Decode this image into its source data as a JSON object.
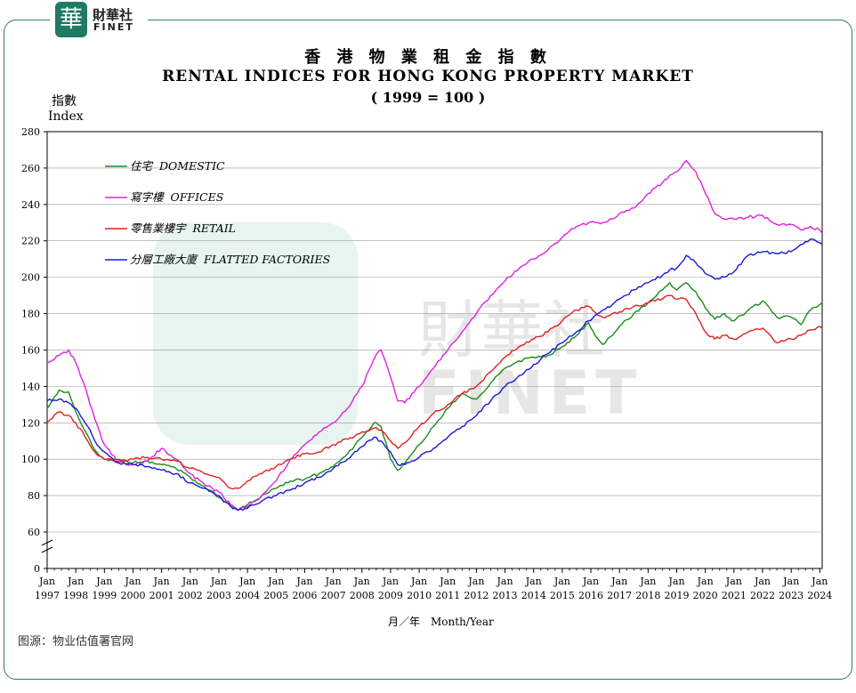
{
  "brand": {
    "mark": "華",
    "name_cn": "財華社",
    "name_en": "FINET"
  },
  "watermark": {
    "cn": "財華社",
    "en": "FINET"
  },
  "source": "图源：物业估值署官网",
  "chart_data": {
    "type": "line",
    "title_cn": "香 港 物 業 租 金 指 數",
    "title": "RENTAL INDICES FOR HONG KONG PROPERTY MARKET",
    "subtitle": "( 1999 = 100 )",
    "ylabel_cn": "指數",
    "ylabel": "Index",
    "xlabel_cn": "月／年",
    "xlabel": "Month/Year",
    "y_ticks": [
      0,
      60,
      80,
      100,
      120,
      140,
      160,
      180,
      200,
      220,
      240,
      260,
      280
    ],
    "ylim": [
      0,
      280
    ],
    "axis_break": "0-60",
    "x_tick_months": [
      "Jan",
      "Jan",
      "Jan",
      "Jan",
      "Jan",
      "Jan",
      "Jan",
      "Jan",
      "Jan",
      "Jan",
      "Jan",
      "Jan",
      "Jan",
      "Jan",
      "Jan",
      "Jan",
      "Jan",
      "Jan",
      "Jan",
      "Jan",
      "Jan",
      "Jan",
      "Jan",
      "Jan",
      "Jan",
      "Jan",
      "Jan",
      "Jan"
    ],
    "x_tick_years": [
      "1997",
      "1998",
      "1999",
      "2000",
      "2001",
      "2002",
      "2003",
      "2004",
      "2005",
      "2006",
      "2007",
      "2008",
      "2009",
      "2010",
      "2011",
      "2012",
      "2013",
      "2014",
      "2015",
      "2016",
      "2017",
      "2018",
      "2019",
      "2020",
      "2021",
      "2022",
      "2023",
      "2024"
    ],
    "xlim": [
      "1997-01",
      "2024-02"
    ],
    "grid": true,
    "legend_position": "top-left",
    "series": [
      {
        "name_cn": "住宅",
        "name": "DOMESTIC",
        "color": "#1a8a1a",
        "points": [
          [
            "1997-01",
            128
          ],
          [
            "1997-06",
            138
          ],
          [
            "1997-10",
            137
          ],
          [
            "1998-01",
            126
          ],
          [
            "1998-06",
            113
          ],
          [
            "1998-09",
            105
          ],
          [
            "1999-01",
            100
          ],
          [
            "1999-07",
            100
          ],
          [
            "2000-01",
            98
          ],
          [
            "2000-07",
            99
          ],
          [
            "2001-01",
            97
          ],
          [
            "2001-07",
            95
          ],
          [
            "2002-01",
            90
          ],
          [
            "2002-07",
            85
          ],
          [
            "2003-01",
            79
          ],
          [
            "2003-06",
            74
          ],
          [
            "2003-09",
            72
          ],
          [
            "2004-01",
            75
          ],
          [
            "2004-07",
            80
          ],
          [
            "2005-01",
            84
          ],
          [
            "2005-07",
            88
          ],
          [
            "2006-01",
            89
          ],
          [
            "2006-07",
            92
          ],
          [
            "2007-01",
            96
          ],
          [
            "2007-07",
            103
          ],
          [
            "2008-01",
            112
          ],
          [
            "2008-06",
            120
          ],
          [
            "2008-09",
            118
          ],
          [
            "2009-01",
            100
          ],
          [
            "2009-04",
            94
          ],
          [
            "2009-07",
            98
          ],
          [
            "2010-01",
            108
          ],
          [
            "2010-07",
            118
          ],
          [
            "2011-01",
            128
          ],
          [
            "2011-07",
            136
          ],
          [
            "2012-01",
            133
          ],
          [
            "2012-07",
            142
          ],
          [
            "2013-01",
            150
          ],
          [
            "2013-07",
            154
          ],
          [
            "2014-01",
            156
          ],
          [
            "2014-07",
            157
          ],
          [
            "2015-01",
            162
          ],
          [
            "2015-07",
            168
          ],
          [
            "2015-12",
            175
          ],
          [
            "2016-04",
            166
          ],
          [
            "2016-06",
            163
          ],
          [
            "2016-10",
            168
          ],
          [
            "2017-01",
            173
          ],
          [
            "2017-07",
            180
          ],
          [
            "2018-01",
            186
          ],
          [
            "2018-07",
            193
          ],
          [
            "2018-10",
            197
          ],
          [
            "2019-01",
            193
          ],
          [
            "2019-05",
            197
          ],
          [
            "2019-09",
            192
          ],
          [
            "2020-01",
            183
          ],
          [
            "2020-05",
            177
          ],
          [
            "2020-09",
            180
          ],
          [
            "2021-01",
            176
          ],
          [
            "2021-07",
            182
          ],
          [
            "2022-01",
            187
          ],
          [
            "2022-07",
            178
          ],
          [
            "2023-01",
            178
          ],
          [
            "2023-05",
            174
          ],
          [
            "2023-09",
            182
          ],
          [
            "2024-01",
            185
          ],
          [
            "2024-02",
            186
          ]
        ]
      },
      {
        "name_cn": "寫字樓",
        "name": "OFFICES",
        "color": "#e020e0",
        "points": [
          [
            "1997-01",
            153
          ],
          [
            "1997-06",
            157
          ],
          [
            "1997-10",
            160
          ],
          [
            "1998-01",
            153
          ],
          [
            "1998-06",
            135
          ],
          [
            "1998-09",
            122
          ],
          [
            "1999-01",
            108
          ],
          [
            "1999-07",
            98
          ],
          [
            "2000-01",
            97
          ],
          [
            "2000-07",
            99
          ],
          [
            "2001-01",
            106
          ],
          [
            "2001-07",
            100
          ],
          [
            "2002-01",
            92
          ],
          [
            "2002-07",
            86
          ],
          [
            "2003-01",
            82
          ],
          [
            "2003-06",
            75
          ],
          [
            "2003-09",
            72
          ],
          [
            "2004-01",
            74
          ],
          [
            "2004-07",
            80
          ],
          [
            "2005-01",
            88
          ],
          [
            "2005-07",
            100
          ],
          [
            "2006-01",
            108
          ],
          [
            "2006-07",
            115
          ],
          [
            "2007-01",
            120
          ],
          [
            "2007-07",
            128
          ],
          [
            "2008-01",
            140
          ],
          [
            "2008-06",
            155
          ],
          [
            "2008-09",
            160
          ],
          [
            "2009-01",
            145
          ],
          [
            "2009-04",
            132
          ],
          [
            "2009-07",
            131
          ],
          [
            "2010-01",
            140
          ],
          [
            "2010-07",
            150
          ],
          [
            "2011-01",
            160
          ],
          [
            "2011-07",
            170
          ],
          [
            "2012-01",
            180
          ],
          [
            "2012-07",
            190
          ],
          [
            "2013-01",
            198
          ],
          [
            "2013-07",
            205
          ],
          [
            "2014-01",
            210
          ],
          [
            "2014-07",
            215
          ],
          [
            "2015-01",
            222
          ],
          [
            "2015-07",
            228
          ],
          [
            "2015-12",
            230
          ],
          [
            "2016-04",
            230
          ],
          [
            "2016-06",
            230
          ],
          [
            "2016-10",
            232
          ],
          [
            "2017-01",
            235
          ],
          [
            "2017-07",
            238
          ],
          [
            "2018-01",
            246
          ],
          [
            "2018-07",
            252
          ],
          [
            "2018-10",
            256
          ],
          [
            "2019-01",
            258
          ],
          [
            "2019-05",
            264
          ],
          [
            "2019-09",
            258
          ],
          [
            "2020-01",
            246
          ],
          [
            "2020-05",
            235
          ],
          [
            "2020-09",
            232
          ],
          [
            "2021-01",
            232
          ],
          [
            "2021-07",
            233
          ],
          [
            "2022-01",
            234
          ],
          [
            "2022-07",
            229
          ],
          [
            "2023-01",
            229
          ],
          [
            "2023-05",
            226
          ],
          [
            "2023-09",
            228
          ],
          [
            "2024-01",
            226
          ],
          [
            "2024-02",
            224
          ]
        ]
      },
      {
        "name_cn": "零售業樓宇",
        "name": "RETAIL",
        "color": "#e02020",
        "points": [
          [
            "1997-01",
            120
          ],
          [
            "1997-06",
            126
          ],
          [
            "1997-10",
            124
          ],
          [
            "1998-01",
            120
          ],
          [
            "1998-06",
            110
          ],
          [
            "1998-09",
            104
          ],
          [
            "1999-01",
            100
          ],
          [
            "1999-07",
            99
          ],
          [
            "2000-01",
            100
          ],
          [
            "2000-07",
            101
          ],
          [
            "2001-01",
            100
          ],
          [
            "2001-07",
            99
          ],
          [
            "2002-01",
            95
          ],
          [
            "2002-07",
            92
          ],
          [
            "2003-01",
            90
          ],
          [
            "2003-06",
            84
          ],
          [
            "2003-09",
            84
          ],
          [
            "2004-01",
            88
          ],
          [
            "2004-07",
            92
          ],
          [
            "2005-01",
            96
          ],
          [
            "2005-07",
            100
          ],
          [
            "2006-01",
            103
          ],
          [
            "2006-07",
            104
          ],
          [
            "2007-01",
            108
          ],
          [
            "2007-07",
            111
          ],
          [
            "2008-01",
            115
          ],
          [
            "2008-06",
            117
          ],
          [
            "2008-09",
            116
          ],
          [
            "2009-01",
            110
          ],
          [
            "2009-04",
            106
          ],
          [
            "2009-07",
            109
          ],
          [
            "2010-01",
            118
          ],
          [
            "2010-07",
            125
          ],
          [
            "2011-01",
            130
          ],
          [
            "2011-07",
            136
          ],
          [
            "2012-01",
            140
          ],
          [
            "2012-07",
            148
          ],
          [
            "2013-01",
            156
          ],
          [
            "2013-07",
            162
          ],
          [
            "2014-01",
            166
          ],
          [
            "2014-07",
            170
          ],
          [
            "2015-01",
            176
          ],
          [
            "2015-07",
            182
          ],
          [
            "2015-12",
            184
          ],
          [
            "2016-04",
            179
          ],
          [
            "2016-06",
            178
          ],
          [
            "2016-10",
            180
          ],
          [
            "2017-01",
            181
          ],
          [
            "2017-07",
            184
          ],
          [
            "2018-01",
            186
          ],
          [
            "2018-07",
            188
          ],
          [
            "2018-10",
            190
          ],
          [
            "2019-01",
            188
          ],
          [
            "2019-05",
            188
          ],
          [
            "2019-09",
            180
          ],
          [
            "2020-01",
            170
          ],
          [
            "2020-05",
            166
          ],
          [
            "2020-09",
            168
          ],
          [
            "2021-01",
            166
          ],
          [
            "2021-07",
            170
          ],
          [
            "2022-01",
            172
          ],
          [
            "2022-07",
            164
          ],
          [
            "2023-01",
            166
          ],
          [
            "2023-05",
            168
          ],
          [
            "2023-09",
            171
          ],
          [
            "2024-01",
            173
          ],
          [
            "2024-02",
            172
          ]
        ]
      },
      {
        "name_cn": "分層工廠大廈",
        "name": "FLATTED FACTORIES",
        "color": "#1a1ad0",
        "points": [
          [
            "1997-01",
            132
          ],
          [
            "1997-06",
            133
          ],
          [
            "1997-10",
            131
          ],
          [
            "1998-01",
            128
          ],
          [
            "1998-06",
            118
          ],
          [
            "1998-09",
            110
          ],
          [
            "1999-01",
            104
          ],
          [
            "1999-07",
            98
          ],
          [
            "2000-01",
            97
          ],
          [
            "2000-07",
            96
          ],
          [
            "2001-01",
            94
          ],
          [
            "2001-07",
            92
          ],
          [
            "2002-01",
            87
          ],
          [
            "2002-07",
            84
          ],
          [
            "2003-01",
            80
          ],
          [
            "2003-06",
            74
          ],
          [
            "2003-09",
            72
          ],
          [
            "2004-01",
            73
          ],
          [
            "2004-07",
            77
          ],
          [
            "2005-01",
            80
          ],
          [
            "2005-07",
            83
          ],
          [
            "2006-01",
            87
          ],
          [
            "2006-07",
            90
          ],
          [
            "2007-01",
            95
          ],
          [
            "2007-07",
            100
          ],
          [
            "2008-01",
            107
          ],
          [
            "2008-06",
            112
          ],
          [
            "2008-09",
            110
          ],
          [
            "2009-01",
            104
          ],
          [
            "2009-04",
            97
          ],
          [
            "2009-07",
            97
          ],
          [
            "2010-01",
            101
          ],
          [
            "2010-07",
            106
          ],
          [
            "2011-01",
            112
          ],
          [
            "2011-07",
            118
          ],
          [
            "2012-01",
            124
          ],
          [
            "2012-07",
            132
          ],
          [
            "2013-01",
            140
          ],
          [
            "2013-07",
            146
          ],
          [
            "2014-01",
            152
          ],
          [
            "2014-07",
            158
          ],
          [
            "2015-01",
            164
          ],
          [
            "2015-07",
            170
          ],
          [
            "2015-12",
            176
          ],
          [
            "2016-04",
            180
          ],
          [
            "2016-06",
            182
          ],
          [
            "2016-10",
            185
          ],
          [
            "2017-01",
            188
          ],
          [
            "2017-07",
            193
          ],
          [
            "2018-01",
            197
          ],
          [
            "2018-07",
            201
          ],
          [
            "2018-10",
            204
          ],
          [
            "2019-01",
            205
          ],
          [
            "2019-05",
            212
          ],
          [
            "2019-09",
            208
          ],
          [
            "2020-01",
            202
          ],
          [
            "2020-05",
            199
          ],
          [
            "2020-09",
            200
          ],
          [
            "2021-01",
            203
          ],
          [
            "2021-07",
            212
          ],
          [
            "2022-01",
            214
          ],
          [
            "2022-07",
            213
          ],
          [
            "2023-01",
            214
          ],
          [
            "2023-05",
            218
          ],
          [
            "2023-09",
            221
          ],
          [
            "2024-01",
            219
          ],
          [
            "2024-02",
            218
          ]
        ]
      }
    ]
  }
}
